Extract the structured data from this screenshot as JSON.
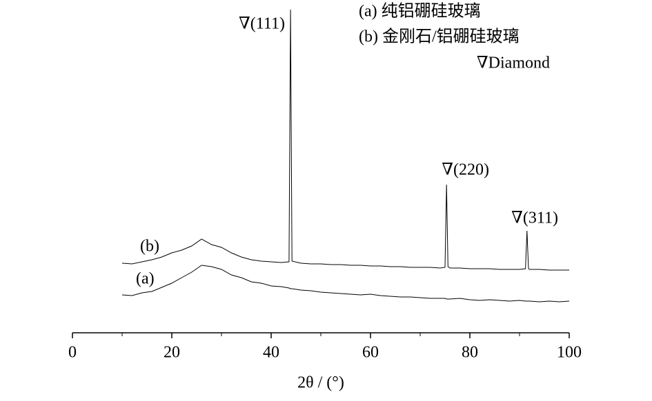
{
  "chart_data": {
    "type": "line",
    "xlabel": "2θ / (°)",
    "xlim": [
      0,
      100
    ],
    "xticks": [
      0,
      20,
      40,
      60,
      80,
      100
    ],
    "x": [
      10,
      12,
      14,
      16,
      18,
      20,
      22,
      24,
      26,
      28,
      30,
      32,
      34,
      36,
      38,
      40,
      42,
      43.6,
      43.9,
      44.2,
      46,
      48,
      50,
      52,
      54,
      56,
      58,
      60,
      62,
      64,
      66,
      68,
      70,
      72,
      74,
      75.0,
      75.3,
      75.6,
      76,
      78,
      80,
      82,
      84,
      86,
      88,
      90,
      91.2,
      91.5,
      91.8,
      92,
      94,
      96,
      98,
      100
    ],
    "series": [
      {
        "name": "(a) 纯铝硼硅玻璃",
        "color": "#000000",
        "values": [
          55,
          54,
          58,
          60,
          66,
          72,
          80,
          88,
          98,
          96,
          92,
          84,
          80,
          74,
          72,
          68,
          67,
          65,
          64,
          64,
          62,
          61,
          59,
          58,
          57,
          56,
          55,
          56,
          54,
          53,
          52,
          52,
          51,
          50,
          50,
          50,
          49,
          49,
          49,
          50,
          48,
          47,
          48,
          47,
          46,
          47,
          46,
          46,
          46,
          46,
          45,
          46,
          45,
          46
        ]
      },
      {
        "name": "(b) 金刚石/铝硼硅玻璃",
        "color": "#000000",
        "values": [
          101,
          100,
          103,
          106,
          110,
          116,
          120,
          126,
          136,
          128,
          124,
          116,
          110,
          106,
          104,
          103,
          102,
          103,
          469,
          104,
          101,
          100,
          100,
          99,
          99,
          98,
          98,
          97,
          97,
          96,
          96,
          95,
          95,
          95,
          94,
          95,
          215,
          96,
          94,
          94,
          93,
          93,
          93,
          92,
          92,
          92,
          93,
          148,
          93,
          92,
          92,
          91,
          91,
          91
        ]
      }
    ],
    "curve_labels": [
      "(a)",
      "(b)"
    ],
    "annotations": [
      "∇(111)",
      "∇(220)",
      "∇(311)"
    ],
    "legend_note": "∇Diamond"
  }
}
